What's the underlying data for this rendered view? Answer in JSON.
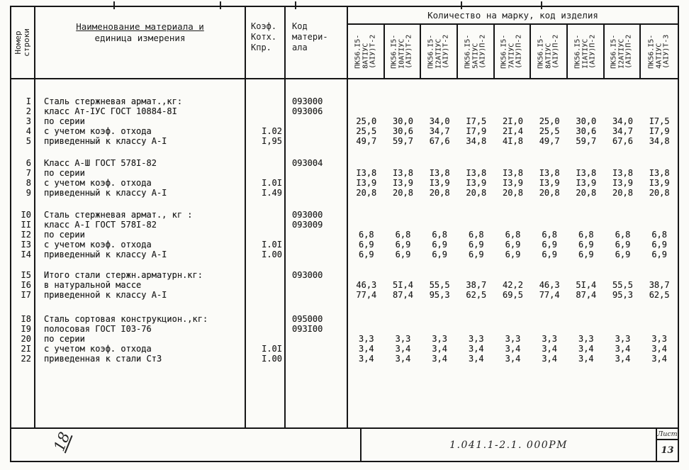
{
  "header": {
    "row_col": {
      "line1": "Номер",
      "line2": "строки"
    },
    "name_col": {
      "line1": "Наименование материала и",
      "line2": "единица измерения"
    },
    "koef_col": {
      "line1": "Коэф.",
      "line2": "Котх.",
      "line3": "Кпр."
    },
    "code_col": {
      "line1": "Код",
      "line2": "матери-",
      "line3": "ала"
    },
    "qty_title": "Количество на марку, код изделия",
    "product_columns": [
      {
        "lines": [
          "ПК56.I5-",
          "8АТIУС",
          "(АIУ)Т-2"
        ]
      },
      {
        "lines": [
          "ПК56.I5-",
          "I0АТIУС",
          "(АIУ)Т-2"
        ]
      },
      {
        "lines": [
          "ПК56.I5-",
          "I2АТIУС",
          "(АIУ)Т-2"
        ]
      },
      {
        "lines": [
          "ПК56.I5-",
          "5АТIУС",
          "(АIУ)П-2"
        ]
      },
      {
        "lines": [
          "ПК56.I5-",
          "7АТIУС",
          "(АIУ)П-2"
        ]
      },
      {
        "lines": [
          "ПК56.I5-",
          "8АТIУС",
          "(АIУ)П-2"
        ]
      },
      {
        "lines": [
          "ПК56.I5-",
          "IIАТIУС",
          "(АIУ)П-2"
        ]
      },
      {
        "lines": [
          "ПК56.I5-",
          "I2АТIУС",
          "(АIУ)П-2"
        ]
      },
      {
        "lines": [
          "ПК56.I5-",
          "4АТIУС",
          "(АIУ)Т-3"
        ]
      }
    ]
  },
  "table": {
    "blocks": [
      {
        "rows": [
          {
            "num": "I",
            "name": "Сталь стержневая армат.,кг:",
            "koef": "",
            "code": "093000",
            "values": []
          },
          {
            "num": "2",
            "name": "класс Ат-IУС ГОСТ 10884-8I",
            "koef": "",
            "code": "093006",
            "values": []
          },
          {
            "num": "3",
            "name": "по серии",
            "koef": "",
            "code": "",
            "values": [
              "25,0",
              "30,0",
              "34,0",
              "I7,5",
              "2I,0",
              "25,0",
              "30,0",
              "34,0",
              "I7,5"
            ]
          },
          {
            "num": "4",
            "name": "с учетом коэф. отхода",
            "koef": "I.02",
            "code": "",
            "values": [
              "25,5",
              "30,6",
              "34,7",
              "I7,9",
              "2I,4",
              "25,5",
              "30,6",
              "34,7",
              "I7,9"
            ]
          },
          {
            "num": "5",
            "name": "приведенный к классу А-I",
            "koef": "I,95",
            "code": "",
            "values": [
              "49,7",
              "59,7",
              "67,6",
              "34,8",
              "4I,8",
              "49,7",
              "59,7",
              "67,6",
              "34,8"
            ]
          }
        ]
      },
      {
        "rows": [
          {
            "num": "6",
            "name": "Класс А-Ш ГОСТ 578I-82",
            "koef": "",
            "code": "093004",
            "values": []
          },
          {
            "num": "7",
            "name": "по серии",
            "koef": "",
            "code": "",
            "values": [
              "I3,8",
              "I3,8",
              "I3,8",
              "I3,8",
              "I3,8",
              "I3,8",
              "I3,8",
              "I3,8",
              "I3,8"
            ]
          },
          {
            "num": "8",
            "name": "с учетом коэф. отхода",
            "koef": "I.0I",
            "code": "",
            "values": [
              "I3,9",
              "I3,9",
              "I3,9",
              "I3,9",
              "I3,9",
              "I3,9",
              "I3,9",
              "I3,9",
              "I3,9"
            ]
          },
          {
            "num": "9",
            "name": "приведенный к классу А-I",
            "koef": "I.49",
            "code": "",
            "values": [
              "20,8",
              "20,8",
              "20,8",
              "20,8",
              "20,8",
              "20,8",
              "20,8",
              "20,8",
              "20,8"
            ]
          }
        ]
      },
      {
        "rows": [
          {
            "num": "I0",
            "name": "Сталь стержневая армат., кг :",
            "koef": "",
            "code": "093000",
            "values": []
          },
          {
            "num": "II",
            "name": "класс А-I ГОСТ 578I-82",
            "koef": "",
            "code": "093009",
            "values": []
          },
          {
            "num": "I2",
            "name": "по серии",
            "koef": "",
            "code": "",
            "values": [
              "6,8",
              "6,8",
              "6,8",
              "6,8",
              "6,8",
              "6,8",
              "6,8",
              "6,8",
              "6,8"
            ]
          },
          {
            "num": "I3",
            "name": "с учетом коэф. отхода",
            "koef": "I.0I",
            "code": "",
            "values": [
              "6,9",
              "6,9",
              "6,9",
              "6,9",
              "6,9",
              "6,9",
              "6,9",
              "6,9",
              "6,9"
            ]
          },
          {
            "num": "I4",
            "name": "приведенный к классу А-I",
            "koef": "I.00",
            "code": "",
            "values": [
              "6,9",
              "6,9",
              "6,9",
              "6,9",
              "6,9",
              "6,9",
              "6,9",
              "6,9",
              "6,9"
            ]
          }
        ]
      },
      {
        "rows": [
          {
            "num": "I5",
            "name": "Итого стали стержн.арматурн.кг:",
            "koef": "",
            "code": "093000",
            "values": []
          },
          {
            "num": "I6",
            "name": "в натуральной массе",
            "koef": "",
            "code": "",
            "values": [
              "46,3",
              "5I,4",
              "55,5",
              "38,7",
              "42,2",
              "46,3",
              "5I,4",
              "55,5",
              "38,7"
            ]
          },
          {
            "num": "I7",
            "name": "приведенной к классу А-I",
            "koef": "",
            "code": "",
            "values": [
              "77,4",
              "87,4",
              "95,3",
              "62,5",
              "69,5",
              "77,4",
              "87,4",
              "95,3",
              "62,5"
            ]
          }
        ]
      },
      {
        "rows": [
          {
            "num": "I8",
            "name": "Сталь сортовая конструкцион.,кг:",
            "koef": "",
            "code": "095000",
            "values": []
          },
          {
            "num": "I9",
            "name": "полосовая ГОСТ I03-76",
            "koef": "",
            "code": "093I00",
            "values": []
          },
          {
            "num": "20",
            "name": "по серии",
            "koef": "",
            "code": "",
            "values": [
              "3,3",
              "3,3",
              "3,3",
              "3,3",
              "3,3",
              "3,3",
              "3,3",
              "3,3",
              "3,3"
            ]
          },
          {
            "num": "2I",
            "name": "с учетом коэф. отхода",
            "koef": "I.0I",
            "code": "",
            "values": [
              "3,4",
              "3,4",
              "3,4",
              "3,4",
              "3,4",
              "3,4",
              "3,4",
              "3,4",
              "3,4"
            ]
          },
          {
            "num": "22",
            "name": "приведенная к стали Ст3",
            "koef": "I.00",
            "code": "",
            "values": [
              "3,4",
              "3,4",
              "3,4",
              "3,4",
              "3,4",
              "3,4",
              "3,4",
              "3,4",
              "3,4"
            ]
          }
        ]
      }
    ]
  },
  "footer": {
    "handwritten_page": "18",
    "doc_number": "1.041.1-2.1. 000РМ",
    "sheet_label": "Лист",
    "sheet_value": "13"
  }
}
